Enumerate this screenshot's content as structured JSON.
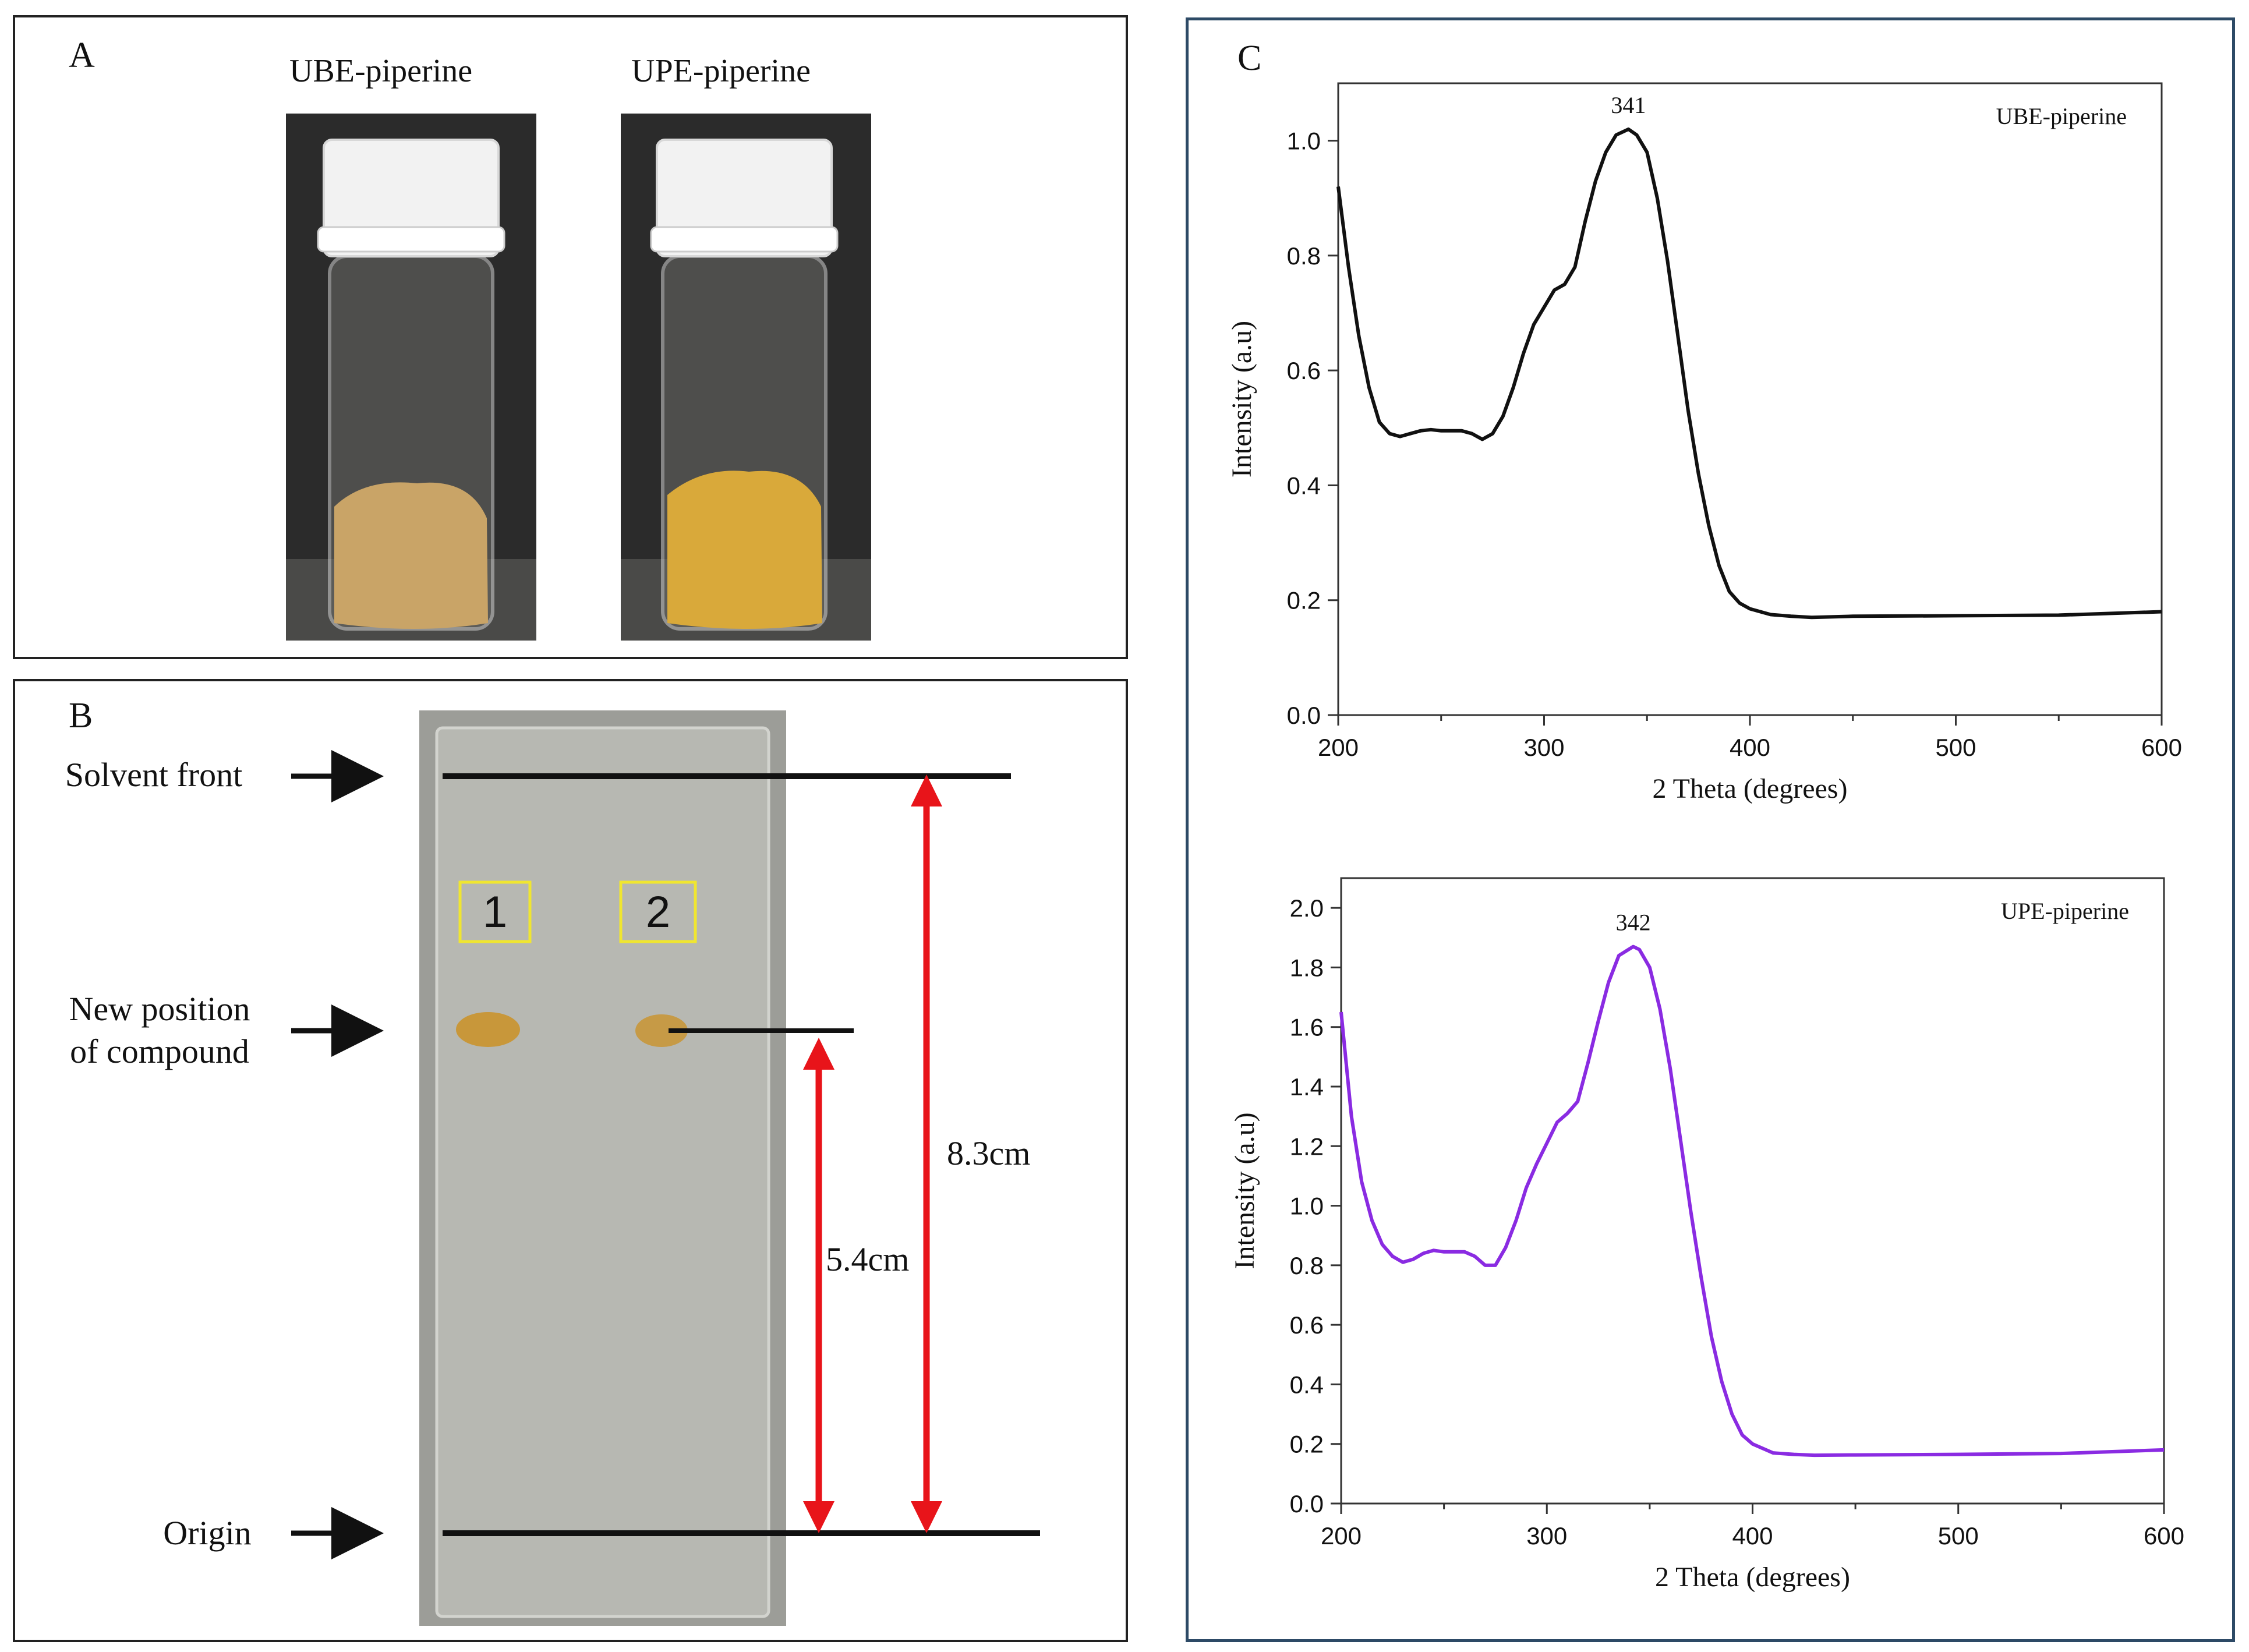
{
  "panel_a": {
    "letter": "A",
    "vial_labels": [
      "UBE-piperine",
      "UPE-piperine"
    ],
    "colors": {
      "ube_powder": "#c9a467",
      "upe_powder": "#d9a93a",
      "cap": "#f2f2f2",
      "background": "#2b2b2b"
    }
  },
  "panel_b": {
    "letter": "B",
    "labels": {
      "solvent_front": "Solvent front",
      "new_position_line1": "New position",
      "new_position_line2": "of compound",
      "origin": "Origin"
    },
    "lanes": [
      "1",
      "2"
    ],
    "distances": {
      "solvent": "8.3cm",
      "compound": "5.4cm"
    },
    "colors": {
      "arrow": "#e8141a",
      "lane_box": "#f0e630",
      "spot": "#c8973a",
      "plate": "#b7b8b2"
    }
  },
  "panel_c": {
    "letter": "C"
  },
  "chart_data": [
    {
      "type": "line",
      "title": "UBE-piperine",
      "xlabel": "2 Theta (degrees)",
      "ylabel": "Intensity (a.u)",
      "xlim": [
        200,
        600
      ],
      "ylim": [
        0,
        1.1
      ],
      "xticks": [
        200,
        300,
        400,
        500,
        600
      ],
      "yticks": [
        0.0,
        0.2,
        0.4,
        0.6,
        0.8,
        1.0
      ],
      "ytick_labels": [
        "0.0",
        "0.2",
        "0.4",
        "0.6",
        "0.8",
        "1.0"
      ],
      "peak_label": "341",
      "peak": {
        "x": 341,
        "y": 1.02
      },
      "color": "#111111",
      "x": [
        200,
        205,
        210,
        215,
        220,
        225,
        230,
        235,
        240,
        245,
        250,
        255,
        260,
        265,
        270,
        275,
        280,
        285,
        290,
        295,
        300,
        305,
        310,
        315,
        320,
        325,
        330,
        335,
        341,
        345,
        350,
        355,
        360,
        365,
        370,
        375,
        380,
        385,
        390,
        395,
        400,
        410,
        420,
        430,
        450,
        500,
        550,
        600
      ],
      "y": [
        0.92,
        0.78,
        0.66,
        0.57,
        0.51,
        0.49,
        0.485,
        0.49,
        0.495,
        0.497,
        0.495,
        0.495,
        0.495,
        0.49,
        0.48,
        0.49,
        0.52,
        0.57,
        0.63,
        0.68,
        0.71,
        0.74,
        0.75,
        0.78,
        0.86,
        0.93,
        0.98,
        1.01,
        1.02,
        1.01,
        0.98,
        0.9,
        0.79,
        0.66,
        0.53,
        0.42,
        0.33,
        0.26,
        0.215,
        0.195,
        0.185,
        0.175,
        0.172,
        0.17,
        0.172,
        0.173,
        0.174,
        0.18
      ]
    },
    {
      "type": "line",
      "title": "UPE-piperine",
      "xlabel": "2 Theta (degrees)",
      "ylabel": "Intensity (a.u)",
      "xlim": [
        200,
        600
      ],
      "ylim": [
        0,
        2.1
      ],
      "xticks": [
        200,
        300,
        400,
        500,
        600
      ],
      "yticks": [
        0.0,
        0.2,
        0.4,
        0.6,
        0.8,
        1.0,
        1.2,
        1.4,
        1.6,
        1.8,
        2.0
      ],
      "ytick_labels": [
        "0.0",
        "0.2",
        "0.4",
        "0.6",
        "0.8",
        "1.0",
        "1.2",
        "1.4",
        "1.6",
        "1.8",
        "2.0"
      ],
      "peak_label": "342",
      "peak": {
        "x": 342,
        "y": 1.87
      },
      "color": "#8a2be2",
      "x": [
        200,
        205,
        210,
        215,
        220,
        225,
        230,
        235,
        240,
        245,
        250,
        255,
        260,
        265,
        270,
        275,
        280,
        285,
        290,
        295,
        300,
        305,
        310,
        315,
        320,
        325,
        330,
        335,
        342,
        345,
        350,
        355,
        360,
        365,
        370,
        375,
        380,
        385,
        390,
        395,
        400,
        410,
        420,
        430,
        450,
        500,
        550,
        600
      ],
      "y": [
        1.65,
        1.3,
        1.08,
        0.95,
        0.87,
        0.83,
        0.81,
        0.82,
        0.84,
        0.85,
        0.845,
        0.845,
        0.845,
        0.83,
        0.8,
        0.8,
        0.86,
        0.95,
        1.06,
        1.14,
        1.21,
        1.28,
        1.31,
        1.35,
        1.48,
        1.62,
        1.75,
        1.84,
        1.87,
        1.86,
        1.8,
        1.66,
        1.46,
        1.22,
        0.98,
        0.76,
        0.56,
        0.41,
        0.3,
        0.23,
        0.2,
        0.17,
        0.165,
        0.162,
        0.163,
        0.165,
        0.168,
        0.18
      ]
    }
  ]
}
